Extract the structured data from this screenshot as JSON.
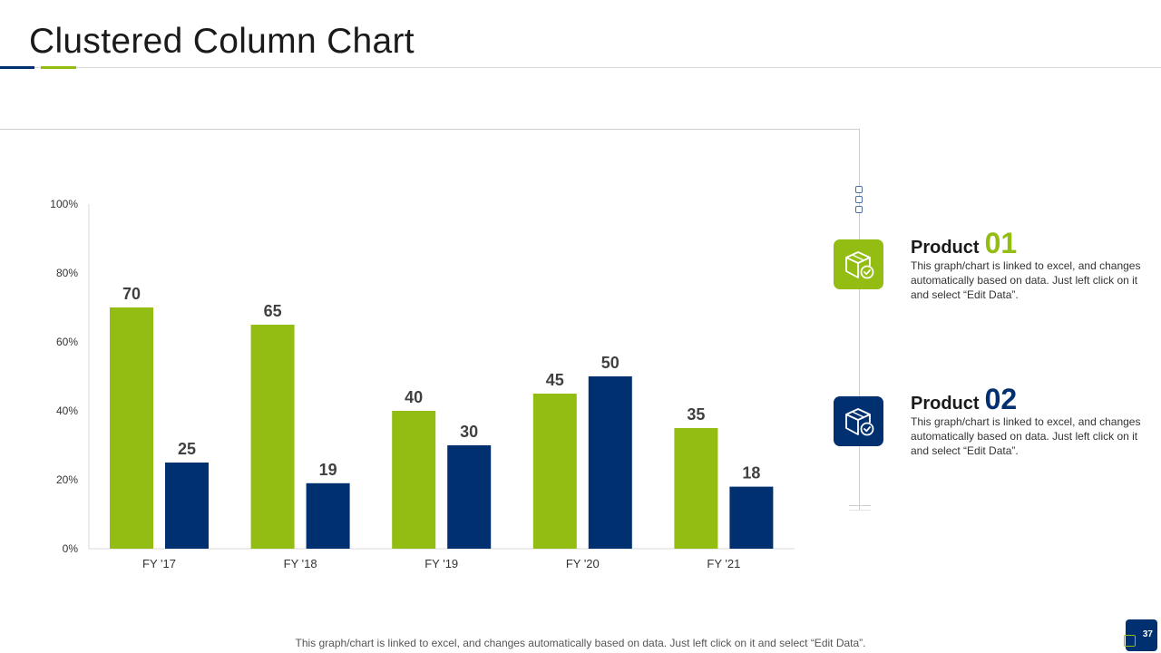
{
  "slide": {
    "title": "Clustered Column Chart",
    "footer_note": "This graph/chart is linked to excel,  and changes automatically based on data. Just left click on it and select “Edit Data”.",
    "page_number": "37"
  },
  "colors": {
    "product01": "#93bd12",
    "product02": "#013070",
    "axis": "#d9d9d9",
    "text": "#333333"
  },
  "products": [
    {
      "label": "Product",
      "number": "01",
      "description": "This graph/chart is linked to excel, and changes automatically based on data. Just left click on it and select “Edit Data”.",
      "icon": "box-check-icon"
    },
    {
      "label": "Product",
      "number": "02",
      "description": "This graph/chart is linked to excel, and changes automatically based on data. Just left click on it and select “Edit Data”.",
      "icon": "box-check-icon"
    }
  ],
  "chart_data": {
    "type": "bar",
    "categories": [
      "FY '17",
      "FY '18",
      "FY '19",
      "FY '20",
      "FY '21"
    ],
    "series": [
      {
        "values": [
          70,
          65,
          40,
          45,
          35
        ],
        "color": "#93bd12"
      },
      {
        "values": [
          25,
          19,
          30,
          50,
          18
        ],
        "color": "#013070"
      }
    ],
    "ylim": [
      0,
      100
    ],
    "yticks": [
      "0%",
      "20%",
      "40%",
      "60%",
      "80%",
      "100%"
    ],
    "grid": false,
    "legend": "none",
    "data_labels": true
  }
}
